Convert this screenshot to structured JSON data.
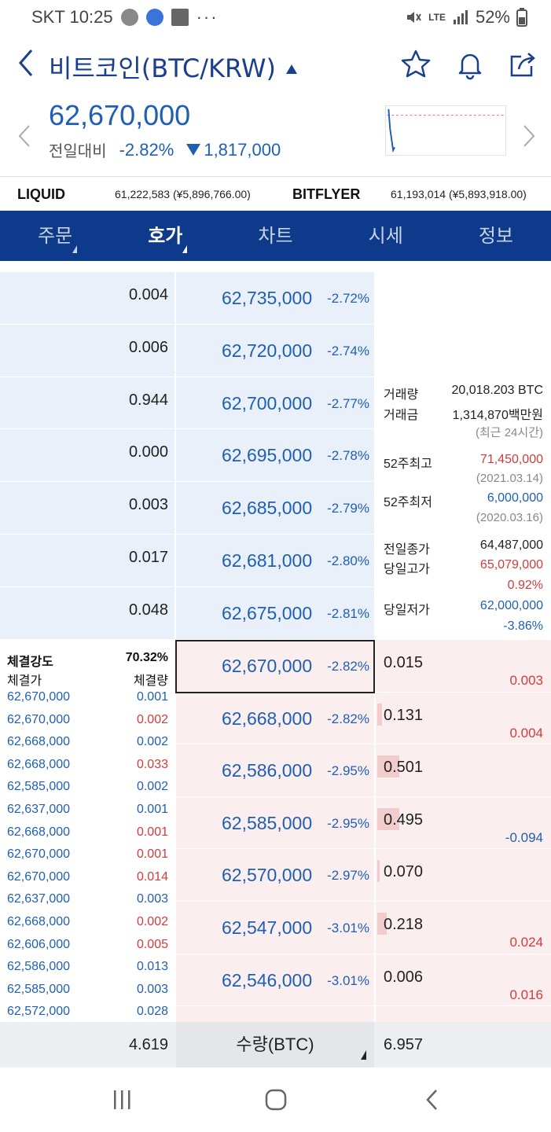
{
  "status": {
    "carrier_time": "SKT 10:25",
    "more": "···",
    "network": "LTE",
    "battery": "52%"
  },
  "header": {
    "title": "비트코인(BTC/KRW)"
  },
  "price": {
    "current": "62,670,000",
    "change_label": "전일대비",
    "change_pct": "-2.82%",
    "change_amt": "1,817,000"
  },
  "exchanges": [
    {
      "name": "LIQUID",
      "value": "61,222,583 (¥5,896,766.00)"
    },
    {
      "name": "BITFLYER",
      "value": "61,193,014 (¥5,893,918.00)"
    }
  ],
  "tabs": [
    "주문",
    "호가",
    "차트",
    "시세",
    "정보"
  ],
  "asks": [
    {
      "qty": "0.004",
      "price": "62,735,000",
      "pct": "-2.72%"
    },
    {
      "qty": "0.006",
      "price": "62,720,000",
      "pct": "-2.74%"
    },
    {
      "qty": "0.944",
      "price": "62,700,000",
      "pct": "-2.77%"
    },
    {
      "qty": "0.000",
      "price": "62,695,000",
      "pct": "-2.78%"
    },
    {
      "qty": "0.003",
      "price": "62,685,000",
      "pct": "-2.79%"
    },
    {
      "qty": "0.017",
      "price": "62,681,000",
      "pct": "-2.80%"
    },
    {
      "qty": "0.048",
      "price": "62,675,000",
      "pct": "-2.81%"
    }
  ],
  "bids": [
    {
      "qty": "0.015",
      "price": "62,670,000",
      "pct": "-2.82%",
      "diff": "0.003"
    },
    {
      "qty": "0.131",
      "price": "62,668,000",
      "pct": "-2.82%",
      "diff": "0.004"
    },
    {
      "qty": "0.501",
      "price": "62,586,000",
      "pct": "-2.95%",
      "diff": ""
    },
    {
      "qty": "0.495",
      "price": "62,585,000",
      "pct": "-2.95%",
      "diff": "-0.094"
    },
    {
      "qty": "0.070",
      "price": "62,570,000",
      "pct": "-2.97%",
      "diff": ""
    },
    {
      "qty": "0.218",
      "price": "62,547,000",
      "pct": "-3.01%",
      "diff": "0.024"
    },
    {
      "qty": "0.006",
      "price": "62,546,000",
      "pct": "-3.01%",
      "diff": "0.016"
    }
  ],
  "info": {
    "volume_label": "거래량",
    "volume": "20,018.203 BTC",
    "amount_label": "거래금",
    "amount": "1,314,870백만원",
    "period": "(최근 24시간)",
    "high52_label": "52주최고",
    "high52": "71,450,000",
    "high52_date": "(2021.03.14)",
    "low52_label": "52주최저",
    "low52": "6,000,000",
    "low52_date": "(2020.03.16)",
    "prev_close_label": "전일종가",
    "prev_close": "64,487,000",
    "day_high_label": "당일고가",
    "day_high": "65,079,000",
    "day_high_pct": "0.92%",
    "day_low_label": "당일저가",
    "day_low": "62,000,000",
    "day_low_pct": "-3.86%"
  },
  "trades": {
    "strength_label": "체결강도",
    "strength": "70.32%",
    "price_header": "체결가",
    "qty_header": "체결량",
    "rows": [
      {
        "price": "62,670,000",
        "qty": "0.001",
        "side": "buy"
      },
      {
        "price": "62,670,000",
        "qty": "0.002",
        "side": "sell"
      },
      {
        "price": "62,668,000",
        "qty": "0.002",
        "side": "buy"
      },
      {
        "price": "62,668,000",
        "qty": "0.033",
        "side": "sell"
      },
      {
        "price": "62,585,000",
        "qty": "0.002",
        "side": "buy"
      },
      {
        "price": "62,637,000",
        "qty": "0.001",
        "side": "buy"
      },
      {
        "price": "62,668,000",
        "qty": "0.001",
        "side": "sell"
      },
      {
        "price": "62,670,000",
        "qty": "0.001",
        "side": "sell"
      },
      {
        "price": "62,670,000",
        "qty": "0.014",
        "side": "sell"
      },
      {
        "price": "62,637,000",
        "qty": "0.003",
        "side": "buy"
      },
      {
        "price": "62,668,000",
        "qty": "0.002",
        "side": "sell"
      },
      {
        "price": "62,606,000",
        "qty": "0.005",
        "side": "sell"
      },
      {
        "price": "62,586,000",
        "qty": "0.013",
        "side": "buy"
      },
      {
        "price": "62,585,000",
        "qty": "0.003",
        "side": "buy"
      },
      {
        "price": "62,572,000",
        "qty": "0.028",
        "side": "buy"
      }
    ]
  },
  "footer": {
    "ask_total": "4.619",
    "unit": "수량(BTC)",
    "bid_total": "6.957"
  },
  "colors": {
    "accent": "#0d3a8a",
    "price_blue": "#1f5fb3",
    "down_red": "#d23b3b",
    "ask_bg": "#e9f0f9",
    "bid_bg": "#fbeeee"
  }
}
